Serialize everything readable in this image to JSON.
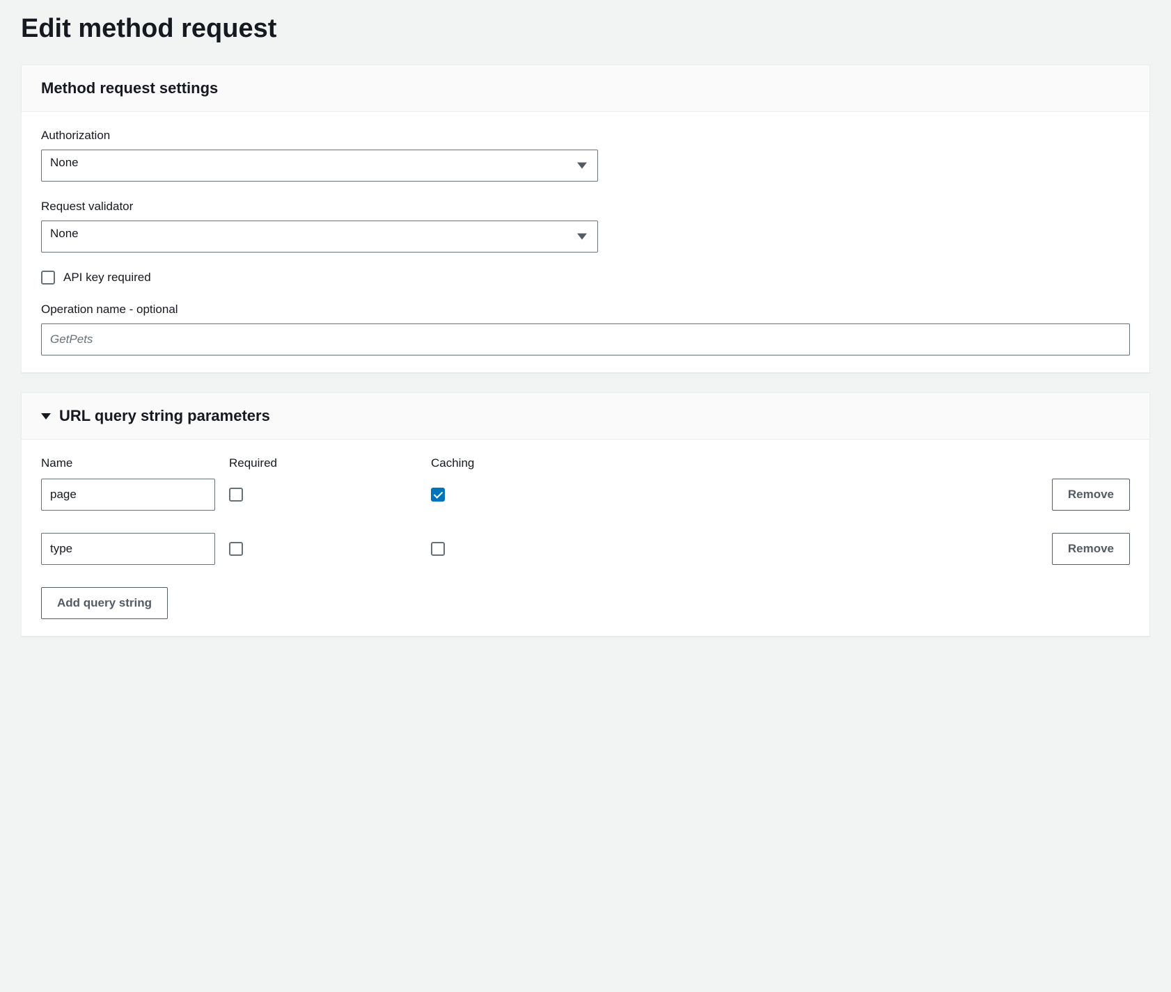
{
  "page": {
    "title": "Edit method request"
  },
  "settings_panel": {
    "heading": "Method request settings",
    "authorization": {
      "label": "Authorization",
      "value": "None"
    },
    "request_validator": {
      "label": "Request validator",
      "value": "None"
    },
    "api_key": {
      "label": "API key required",
      "checked": false
    },
    "operation_name": {
      "label": "Operation name - optional",
      "placeholder": "GetPets",
      "value": ""
    }
  },
  "query_params_panel": {
    "heading": "URL query string parameters",
    "columns": {
      "name": "Name",
      "required": "Required",
      "caching": "Caching"
    },
    "rows": [
      {
        "name": "page",
        "required": false,
        "caching": true
      },
      {
        "name": "type",
        "required": false,
        "caching": false
      }
    ],
    "remove_label": "Remove",
    "add_label": "Add query string"
  }
}
